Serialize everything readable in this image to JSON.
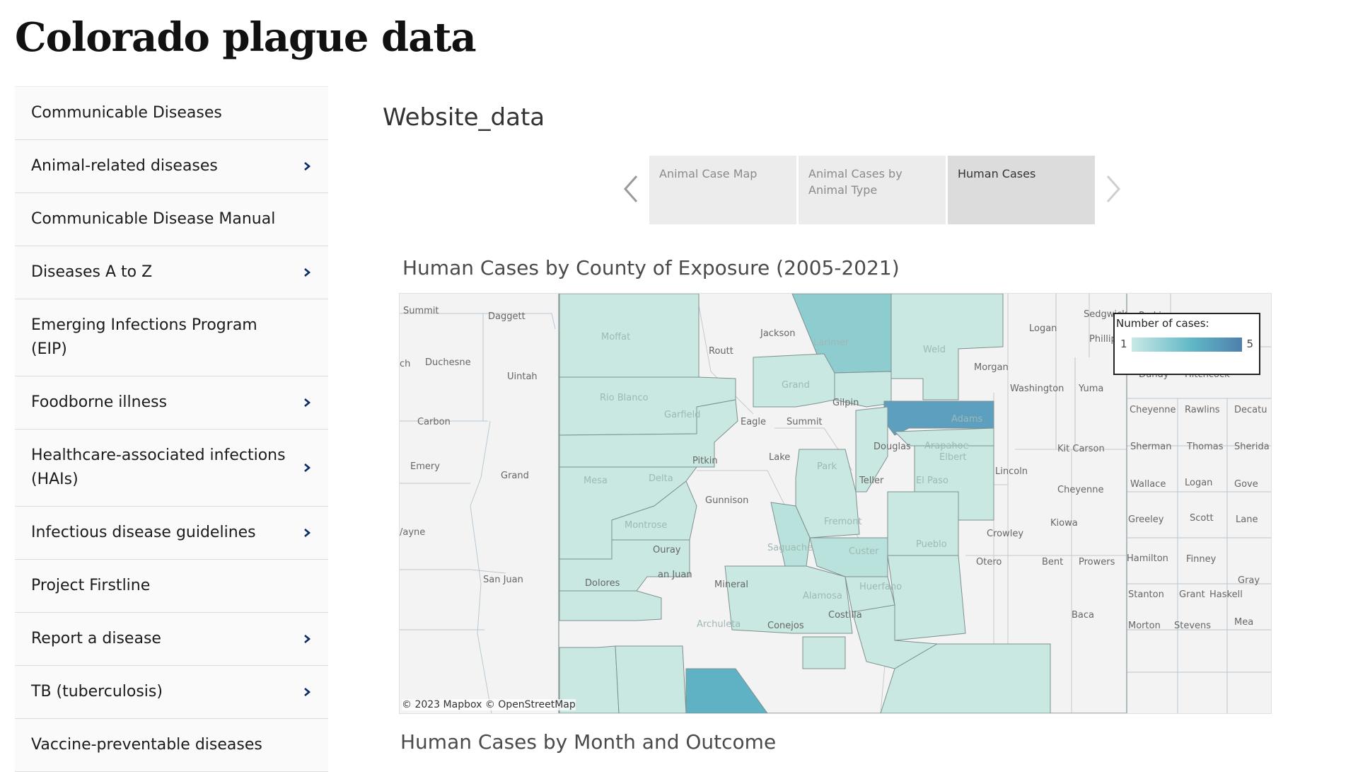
{
  "page": {
    "title": "Colorado plague data"
  },
  "sidebar": {
    "items": [
      {
        "label": "Communicable Diseases",
        "expandable": false
      },
      {
        "label": "Animal-related diseases",
        "expandable": true
      },
      {
        "label": "Communicable Disease Manual",
        "expandable": false
      },
      {
        "label": "Diseases A to Z",
        "expandable": true
      },
      {
        "label": "Emerging Infections Program (EIP)",
        "expandable": false
      },
      {
        "label": "Foodborne illness",
        "expandable": true
      },
      {
        "label": "Healthcare-associated infections (HAIs)",
        "expandable": true
      },
      {
        "label": "Infectious disease guidelines",
        "expandable": true
      },
      {
        "label": "Project Firstline",
        "expandable": false
      },
      {
        "label": "Report a disease",
        "expandable": true
      },
      {
        "label": "TB (tuberculosis)",
        "expandable": true
      },
      {
        "label": "Vaccine-preventable diseases",
        "expandable": false
      }
    ],
    "chevron_icon": "chevron-right-icon"
  },
  "dashboard": {
    "title": "Website_data",
    "tabs": [
      {
        "label": "Animal Case Map",
        "active": false
      },
      {
        "label": "Animal Cases by Animal Type",
        "active": false
      },
      {
        "label": "Human Cases",
        "active": true
      }
    ],
    "prev_icon": "chevron-left-icon",
    "next_icon": "chevron-right-icon"
  },
  "map": {
    "title": "Human Cases by County of Exposure (2005-2021)",
    "legend": {
      "title": "Number of cases:",
      "min": "1",
      "max": "5"
    },
    "attribution": "© 2023 Mapbox  © OpenStreetMap",
    "labels": {
      "summit_ut": "Summit",
      "daggett": "Daggett",
      "duchesne": "Duchesne",
      "uintah": "Uintah",
      "carbon": "Carbon",
      "emery": "Emery",
      "grand_ut": "Grand",
      "wayne": "/ayne",
      "san_juan_ut": "San Juan",
      "ch": "ch",
      "moffat": "Moffat",
      "routt": "Routt",
      "jackson": "Jackson",
      "larimer": "Larimer",
      "weld": "Weld",
      "logan_co": "Logan",
      "sedgwick": "Sedgwick",
      "phillips": "Phillips",
      "perkins": "Perkins",
      "morgan": "Morgan",
      "washington": "Washington",
      "yuma": "Yuma",
      "dundy": "Dundy",
      "hitchcock": "Hitchcock",
      "rio_blanco": "Rio Blanco",
      "garfield": "Garfield",
      "grand_co": "Grand",
      "gilpin": "Gilpin",
      "adams": "Adams",
      "arapahoe": "Arapahoe",
      "eagle": "Eagle",
      "summit_co": "Summit",
      "douglas": "Douglas",
      "elbert": "Elbert",
      "kit_carson": "Kit Carson",
      "cheyenne_ks": "Cheyenne",
      "rawlins": "Rawlins",
      "decatur": "Decatu",
      "sherman": "Sherman",
      "thomas": "Thomas",
      "sheridan": "Sherida",
      "pitkin": "Pitkin",
      "lake": "Lake",
      "park": "Park",
      "mesa": "Mesa",
      "delta": "Delta",
      "gunnison": "Gunnison",
      "teller": "Teller",
      "el_paso": "El Paso",
      "lincoln": "Lincoln",
      "cheyenne_co": "Cheyenne",
      "wallace": "Wallace",
      "logan_ks": "Logan",
      "gove": "Gove",
      "montrose": "Montrose",
      "fremont": "Fremont",
      "kiowa": "Kiowa",
      "greeley": "Greeley",
      "scott": "Scott",
      "lane": "Lane",
      "ouray": "Ouray",
      "custer": "Custer",
      "pueblo": "Pueblo",
      "crowley": "Crowley",
      "otero": "Otero",
      "bent": "Bent",
      "prowers": "Prowers",
      "hamilton": "Hamilton",
      "finney": "Finney",
      "gray": "Gray",
      "dolores": "Dolores",
      "san_juan_co": "an Juan",
      "mineral": "Mineral",
      "huerfano": "Huerfano",
      "alamosa": "Alamosa",
      "stanton": "Stanton",
      "grant": "Grant",
      "haskell": "Haskell",
      "archuleta": "Archuleta",
      "conejos": "Conejos",
      "costilla": "Costilla",
      "baca": "Baca",
      "morton": "Morton",
      "stevens": "Stevens",
      "meade": "Mea",
      "saguache": "Saguache"
    },
    "county_cases": {
      "Larimer": 2,
      "Adams": 5,
      "Archuleta": 3,
      "Moffat": 1,
      "Rio Blanco": 1,
      "Garfield": 1,
      "Mesa": 1,
      "Delta": 1,
      "Montrose": 1,
      "Grand": 1,
      "Boulder": 1,
      "Jefferson": 1,
      "Arapahoe": 1,
      "Elbert": 1,
      "Weld": 1,
      "Park": 1,
      "Chaffee": 1,
      "El Paso": 1,
      "Fremont": 1,
      "Saguache": 1,
      "Custer": 1,
      "Pueblo": 1,
      "Huerfano": 1,
      "Las Animas": 1,
      "La Plata": 1,
      "Montezuma": 1,
      "San Miguel": 1,
      "Alamosa": 1
    }
  },
  "second_chart": {
    "title": "Human Cases by Month and Outcome"
  }
}
